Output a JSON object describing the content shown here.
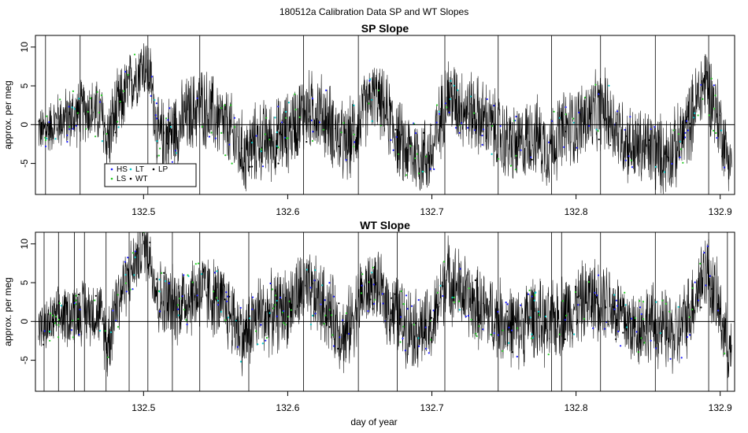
{
  "figure": {
    "title": "180512a   Calibration Data SP and WT Slopes",
    "xlabel": "day of year"
  },
  "legend": {
    "placement": "lower-left of top panel",
    "entries": [
      {
        "label": "HS",
        "color": "#1a1aff"
      },
      {
        "label": "LS",
        "color": "#22cc22"
      },
      {
        "label": "LT",
        "color": "#00cccc"
      },
      {
        "label": "WT",
        "color": "#000000"
      },
      {
        "label": "LP",
        "color": "#000000"
      }
    ]
  },
  "chart_data": [
    {
      "type": "line",
      "title": "SP Slope",
      "xlabel": "",
      "ylabel": "approx. per meg",
      "xlim": [
        132.425,
        132.91
      ],
      "ylim": [
        -9,
        11.5
      ],
      "xticks": [
        132.5,
        132.6,
        132.7,
        132.8,
        132.9
      ],
      "yticks": [
        -5,
        0,
        5,
        10
      ],
      "hline": 0,
      "grid": false,
      "envelope": {
        "x": [
          132.425,
          132.43,
          132.44,
          132.45,
          132.46,
          132.47,
          132.475,
          132.48,
          132.49,
          132.5,
          132.505,
          132.51,
          132.52,
          132.53,
          132.54,
          132.55,
          132.56,
          132.57,
          132.58,
          132.59,
          132.6,
          132.61,
          132.62,
          132.63,
          132.64,
          132.65,
          132.66,
          132.67,
          132.68,
          132.69,
          132.7,
          132.71,
          132.72,
          132.73,
          132.74,
          132.75,
          132.76,
          132.77,
          132.78,
          132.79,
          132.8,
          132.81,
          132.82,
          132.83,
          132.84,
          132.85,
          132.86,
          132.87,
          132.88,
          132.89,
          132.9,
          132.905,
          132.91
        ],
        "center": [
          0,
          -1,
          0.5,
          1,
          2,
          1.5,
          -2,
          1,
          5,
          8,
          6,
          -2,
          -1,
          1,
          2.5,
          1,
          -1,
          -4,
          -2,
          -2,
          -1,
          1.5,
          2,
          0,
          -3,
          0.5,
          4,
          1,
          -3,
          -4,
          -4,
          4,
          2.5,
          1.5,
          0,
          -2,
          -3,
          -1,
          -3,
          -1,
          0,
          1,
          2,
          -1,
          -3,
          -3,
          -4,
          -3,
          1,
          6,
          0,
          -4,
          -5
        ],
        "spread": [
          3,
          3,
          3.5,
          4,
          4,
          4,
          5,
          5,
          4,
          4,
          4,
          5,
          5,
          5,
          5,
          5,
          5,
          5,
          5,
          5,
          5,
          5,
          5,
          5,
          5,
          5,
          4,
          5,
          5,
          5,
          5,
          5,
          5,
          5,
          5,
          5,
          5,
          5,
          5,
          5,
          5,
          5,
          5,
          5,
          5,
          5,
          5,
          5,
          5,
          5,
          5,
          4,
          3
        ]
      },
      "spikes": [
        132.432,
        132.456,
        132.503,
        132.539,
        132.611,
        132.649,
        132.709,
        132.746,
        132.783,
        132.817,
        132.855,
        132.892
      ],
      "tracer_points": {
        "HS": 90,
        "LS": 90,
        "LT": 40,
        "LP": 25
      }
    },
    {
      "type": "line",
      "title": "WT Slope",
      "xlabel": "day of year",
      "ylabel": "approx. per meg",
      "xlim": [
        132.425,
        132.91
      ],
      "ylim": [
        -9,
        11.5
      ],
      "xticks": [
        132.5,
        132.6,
        132.7,
        132.8,
        132.9
      ],
      "yticks": [
        -5,
        0,
        5,
        10
      ],
      "hline": 0,
      "grid": false,
      "envelope": {
        "x": [
          132.425,
          132.43,
          132.44,
          132.45,
          132.46,
          132.47,
          132.475,
          132.48,
          132.49,
          132.5,
          132.505,
          132.51,
          132.52,
          132.53,
          132.54,
          132.55,
          132.56,
          132.57,
          132.58,
          132.59,
          132.6,
          132.61,
          132.62,
          132.63,
          132.64,
          132.65,
          132.66,
          132.67,
          132.68,
          132.69,
          132.7,
          132.71,
          132.72,
          132.73,
          132.74,
          132.75,
          132.76,
          132.77,
          132.78,
          132.79,
          132.8,
          132.81,
          132.82,
          132.83,
          132.84,
          132.85,
          132.86,
          132.87,
          132.88,
          132.89,
          132.9,
          132.905,
          132.91
        ],
        "center": [
          0,
          -1,
          0.5,
          1,
          1.5,
          1,
          -3,
          2,
          6,
          10,
          8,
          3,
          2,
          3,
          4,
          3,
          1,
          -2,
          1,
          1,
          2,
          4,
          3,
          1,
          -2,
          3,
          5,
          2,
          0,
          -1,
          -1,
          6,
          4,
          2,
          1,
          0,
          -1,
          1,
          -1,
          1,
          2,
          3,
          3,
          1,
          -1,
          0,
          -1,
          -2,
          2,
          7,
          1,
          -3,
          -5
        ],
        "spread": [
          3,
          3,
          3.5,
          4,
          4,
          4,
          5,
          5,
          4,
          4,
          4,
          5,
          5,
          5,
          5,
          5,
          5,
          5,
          5,
          5,
          5,
          5,
          5,
          5,
          5,
          5,
          4,
          5,
          5,
          5,
          5,
          5,
          5,
          5,
          5,
          5,
          5,
          5,
          5,
          5,
          5,
          5,
          5,
          5,
          5,
          5,
          5,
          5,
          5,
          5,
          5,
          4,
          3
        ]
      },
      "spikes": [
        132.431,
        132.441,
        132.452,
        132.459,
        132.474,
        132.49,
        132.503,
        132.52,
        132.539,
        132.573,
        132.611,
        132.649,
        132.676,
        132.709,
        132.746,
        132.783,
        132.79,
        132.817,
        132.855,
        132.892,
        132.905
      ],
      "tracer_points": {
        "HS": 110,
        "LS": 110,
        "LT": 50,
        "LP": 30
      }
    }
  ]
}
